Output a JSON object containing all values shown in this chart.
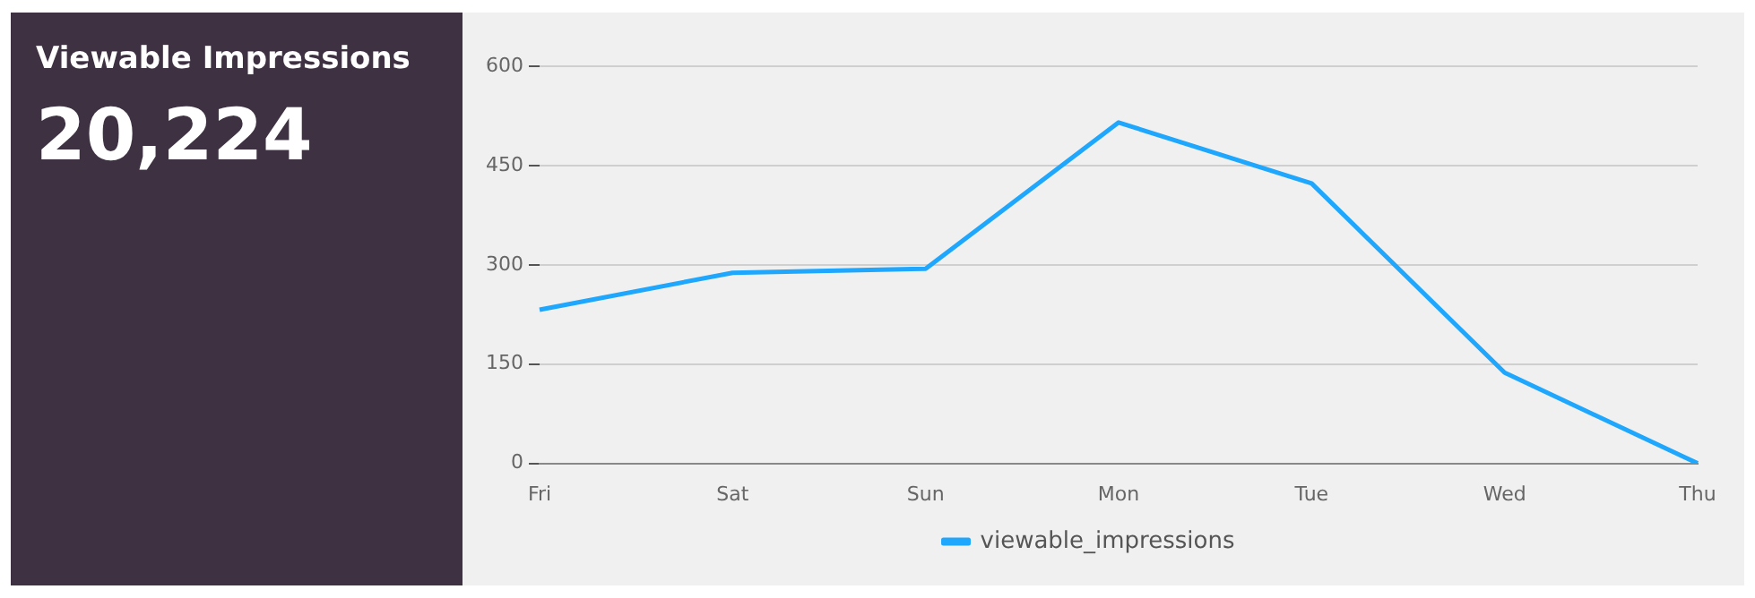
{
  "chart_data": [
    {
      "type": "other",
      "title": "Viewable Impressions",
      "annotations": [
        "20,224"
      ]
    },
    {
      "type": "line",
      "categories": [
        "Fri",
        "Sat",
        "Sun",
        "Mon",
        "Tue",
        "Wed",
        "Thu"
      ],
      "series": [
        {
          "name": "viewable_impressions",
          "color": "#1ea7fd",
          "values": [
            232,
            288,
            294,
            515,
            423,
            137,
            0
          ]
        }
      ],
      "ylim": [
        0,
        600
      ],
      "yticks": [
        0,
        150,
        300,
        450,
        600
      ],
      "grid": "y",
      "legend": "bottom",
      "marker": "none",
      "line_style": "solid"
    }
  ]
}
